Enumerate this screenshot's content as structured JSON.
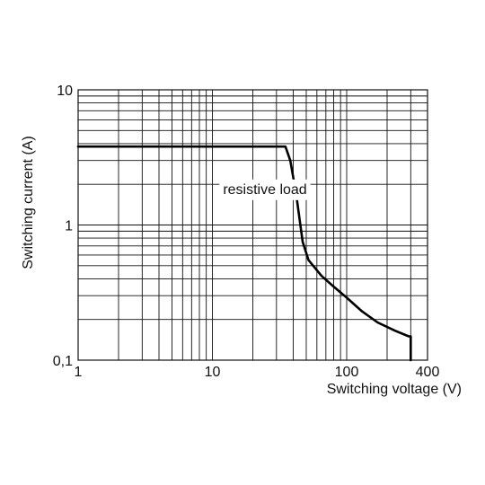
{
  "chart_data": {
    "type": "line",
    "xscale": "log",
    "yscale": "log",
    "xlim": [
      1,
      400
    ],
    "ylim": [
      0.1,
      10
    ],
    "xlabel": "Switching voltage (V)",
    "ylabel": "Switching current (A)",
    "x_ticks": [
      {
        "value": 1,
        "label": "1"
      },
      {
        "value": 10,
        "label": "10"
      },
      {
        "value": 100,
        "label": "100"
      },
      {
        "value": 400,
        "label": "400"
      }
    ],
    "y_ticks": [
      {
        "value": 0.1,
        "label": "0,1"
      },
      {
        "value": 1,
        "label": "1"
      },
      {
        "value": 10,
        "label": "10"
      }
    ],
    "grid": true,
    "annotations": [
      {
        "text": "resistive load",
        "x": 12,
        "y": 1.7
      }
    ],
    "series": [
      {
        "x": [
          1,
          35,
          38,
          42,
          47,
          52,
          65,
          80,
          100,
          130,
          170,
          230,
          290,
          300,
          300
        ],
        "y": [
          3.8,
          3.8,
          3.0,
          1.7,
          0.75,
          0.55,
          0.42,
          0.35,
          0.29,
          0.23,
          0.19,
          0.165,
          0.15,
          0.15,
          0.1
        ]
      }
    ]
  }
}
